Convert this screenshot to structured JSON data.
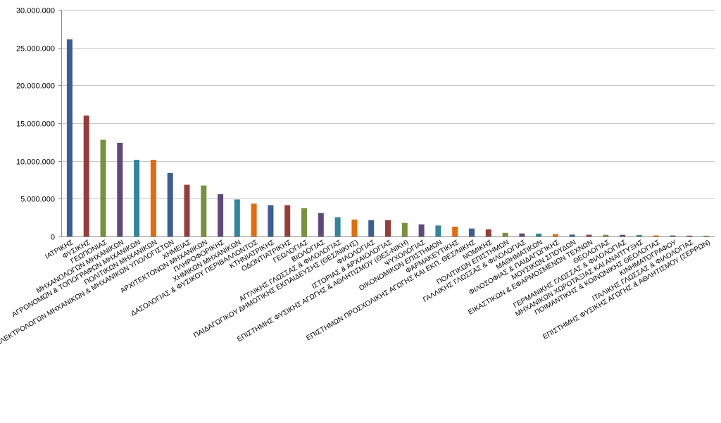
{
  "chart_data": {
    "type": "bar",
    "title": "",
    "xlabel": "",
    "ylabel": "",
    "ylim": [
      0,
      30000000
    ],
    "yticks": [
      0,
      5000000,
      10000000,
      15000000,
      20000000,
      25000000,
      30000000
    ],
    "ytick_labels": [
      "0",
      "5.000.000",
      "10.000.000",
      "15.000.000",
      "20.000.000",
      "25.000.000",
      "30.000.000"
    ],
    "grid": true,
    "legend": "none",
    "colors": [
      "#3b5e93",
      "#953d3b",
      "#76923c",
      "#5f497a",
      "#31859c",
      "#e46c0a"
    ],
    "categories": [
      "ΙΑΤΡΙΚΗΣ",
      "ΦΥΣΙΚΗΣ",
      "ΓΕΩΠΟΝΙΑΣ",
      "ΜΗΧΑΝΟΛΟΓΩΝ ΜΗΧΑΝΙΚΩΝ",
      "ΑΓΡΟΝΟΜΩΝ & ΤΟΠΟΓΡΑΦΩΝ ΜΗΧΑΝΙΚΩΝ",
      "ΠΟΛΙΤΙΚΩΝ ΜΗΧΑΝΙΚΩΝ",
      "ΗΛΕΚΤΡΟΛΟΓΩΝ ΜΗΧΑΝΙΚΩΝ & ΜΗΧΑΝΙΚΩΝ ΥΠΟΛΟΓΙΣΤΩΝ",
      "ΧΗΜΕΙΑΣ",
      "ΑΡΧΙΤΕΚΤΟΝΩΝ ΜΗΧΑΝΙΚΩΝ",
      "ΠΛΗΡΟΦΟΡΙΚΗΣ",
      "ΧΗΜΙΚΩΝ ΜΗΧΑΝΙΚΩΝ",
      "ΔΑΣΟΛΟΓΙΑΣ & ΦΥΣΙΚΟΥ ΠΕΡΙΒΑΛΛΟΝΤΟΣ",
      "ΚΤΗΝΙΑΤΡΙΚΗΣ",
      "ΟΔΟΝΤΙΑΤΡΙΚΗΣ",
      "ΓΕΩΛΟΓΙΑΣ",
      "ΒΙΟΛΟΓΙΑΣ",
      "ΑΓΓΛΙΚΗΣ ΓΛΩΣΣΑΣ & ΦΙΛΟΛΟΓΙΑΣ",
      "ΠΑΙΔΑΓΩΓΙΚΟΥ ΔΗΜΟΤΙΚΗΣ ΕΚΠΑΙΔΕΥΣΗΣ (ΘΕΣ/ΝΙΚΗΣ)",
      "ΦΙΛΟΛΟΓΙΑΣ",
      "ΙΣΤΟΡΙΑΣ & ΑΡΧΑΙΟΛΟΓΙΑΣ",
      "ΕΠΙΣΤΗΜΗΣ ΦΥΣΙΚΗΣ ΑΓΩΓΗΣ & ΑΘΛΗΤΙΣΜΟΥ (ΘΕΣ-ΝΙΚΗ)",
      "ΨΥΧΟΛΟΓΙΑΣ",
      "ΟΙΚΟΝΟΜΙΚΩΝ ΕΠΙΣΤΗΜΩΝ",
      "ΦΑΡΜΑΚΕΥΤΙΚΗΣ",
      "ΕΠΙΣΤΗΜΩΝ ΠΡΟΣΧΟΛΙΚΗΣ ΑΓΩΓΗΣ ΚΑΙ ΕΚΠ. ΘΕΣ/ΝΙΚΗΣ",
      "ΝΟΜΙΚΗΣ",
      "ΠΟΛΙΤΙΚΩΝ ΕΠΙΣΤΗΜΩΝ",
      "ΓΑΛΛΙΚΗΣ ΓΛΩΣΣΑΣ & ΦΙΛΟΛΟΓΙΑΣ",
      "ΜΑΘΗΜΑΤΙΚΩΝ",
      "ΦΙΛΟΣΟΦΙΑΣ & ΠΑΙΔΑΓΩΓΙΚΗΣ",
      "ΜΟΥΣΙΚΩΝ ΣΠΟΥΔΩΝ",
      "ΕΙΚΑΣΤΙΚΩΝ & ΕΦΑΡΜΟΣΜΕΝΩΝ ΤΕΧΝΩΝ",
      "ΘΕΟΛΟΓΙΑΣ",
      "ΓΕΡΜΑΝΙΚΗΣ ΓΛΩΣΣΑΣ & ΦΙΛΟΛΟΓΙΑΣ",
      "ΜΗΧΑΝΙΚΩΝ ΧΩΡΟΤΑΞΙΑΣ ΚΑΙ ΑΝΑΠΤΥΞΗΣ",
      "ΠΟΙΜΑΝΤΙΚΗΣ & ΚΟΙΝΩΝΙΚΗΣ ΘΕΟΛΟΓΙΑΣ",
      "ΚΙΝΗΜΑΤΟΓΡΑΦΟΥ",
      "ΙΤΑΛΙΚΗΣ ΓΛΩΣΣΑΣ & ΦΙΛΟΛΟΓΙΑΣ",
      "ΕΠΙΣΤΗΜΗΣ ΦΥΣΙΚΗΣ ΑΓΩΓΗΣ & ΑΘΛΗΤΙΣΜΟΥ (ΣΕΡΡΩΝ)"
    ],
    "values": [
      26100000,
      16000000,
      12800000,
      12400000,
      10150000,
      10150000,
      8400000,
      6850000,
      6750000,
      5600000,
      4900000,
      4350000,
      4150000,
      4150000,
      3750000,
      3100000,
      2550000,
      2250000,
      2150000,
      2150000,
      1800000,
      1600000,
      1450000,
      1300000,
      1050000,
      950000,
      480000,
      400000,
      380000,
      320000,
      250000,
      230000,
      220000,
      210000,
      200000,
      140000,
      130000,
      110000,
      100000
    ]
  }
}
